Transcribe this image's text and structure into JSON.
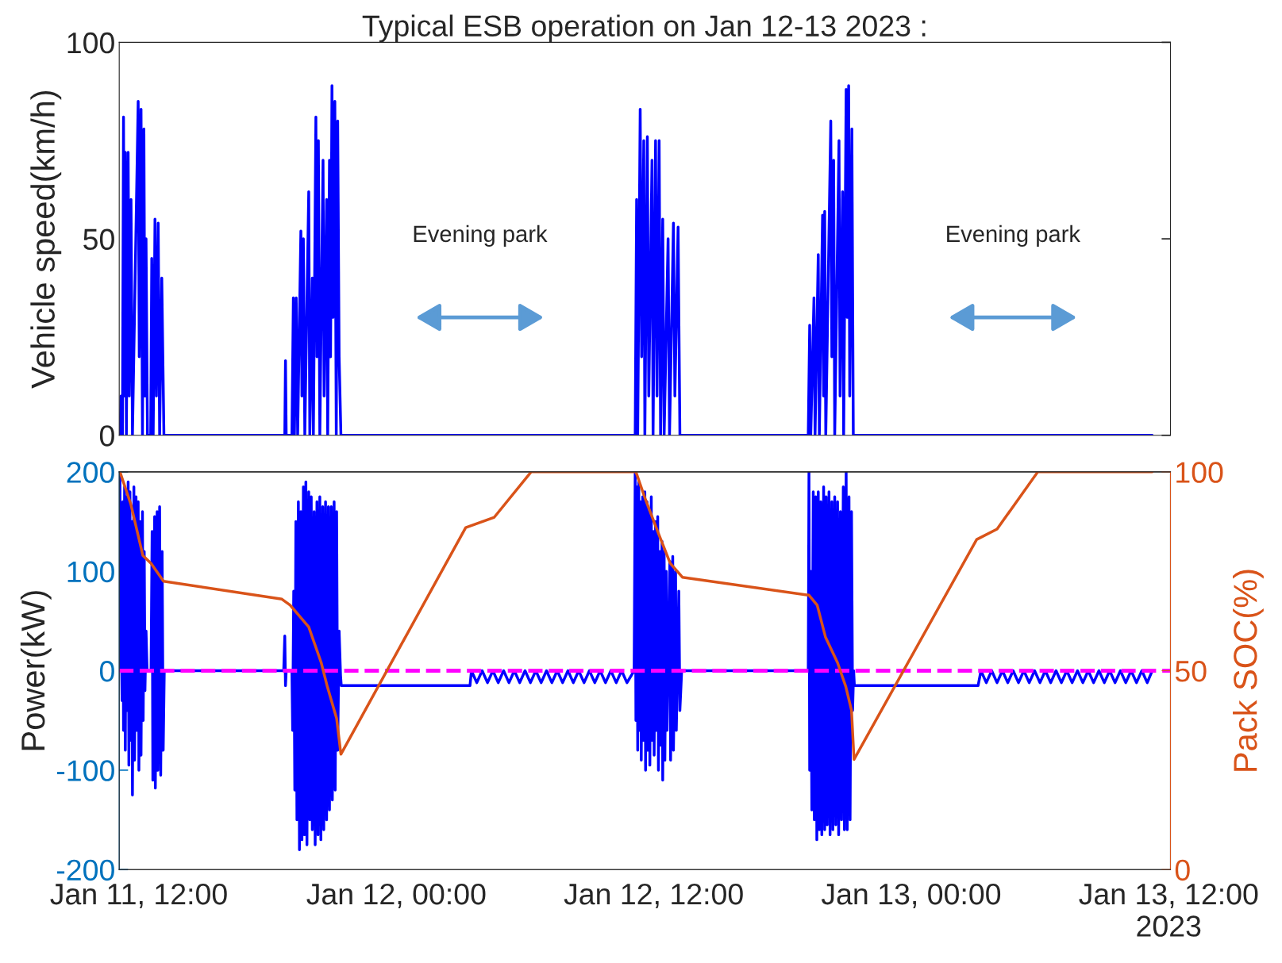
{
  "chart_data": [
    {
      "type": "line",
      "title": "Typical ESB operation on Jan 12-13 2023 :",
      "ylabel": "Vehicle speed(km/h)",
      "xlim": [
        "2023-01-11T11:05",
        "2023-01-13T12:05"
      ],
      "ylim": [
        0,
        100
      ],
      "yticks": [
        0,
        50,
        100
      ],
      "tick_labels": "y",
      "annotations": [
        "Evening park",
        "Evening park"
      ],
      "series": [
        {
          "color": "#0000ff",
          "x": [
            "2023-01-11T11:07",
            "2023-01-11T11:10",
            "2023-01-11T11:14",
            "2023-01-11T11:17",
            "2023-01-11T11:20",
            "2023-01-11T11:22",
            "2023-01-11T11:25",
            "2023-01-11T11:30",
            "2023-01-11T11:33",
            "2023-01-11T11:38",
            "2023-01-11T11:42",
            "2023-01-11T11:58",
            "2023-01-11T12:01",
            "2023-01-11T12:06",
            "2023-01-11T12:10",
            "2023-01-11T12:14",
            "2023-01-11T12:17",
            "2023-01-11T12:20",
            "2023-01-11T12:24",
            "2023-01-11T12:33",
            "2023-01-11T12:36",
            "2023-01-11T12:40",
            "2023-01-11T12:45",
            "2023-01-11T12:49",
            "2023-01-11T12:54",
            "2023-01-11T12:58",
            "2023-01-11T13:04",
            "2023-01-11T13:10",
            "2023-01-11T18:48",
            "2023-01-11T18:50",
            "2023-01-11T18:52",
            "2023-01-11T19:08",
            "2023-01-11T19:12",
            "2023-01-11T19:15",
            "2023-01-11T19:20",
            "2023-01-11T19:24",
            "2023-01-11T19:33",
            "2023-01-11T19:36",
            "2023-01-11T19:40",
            "2023-01-11T19:44",
            "2023-01-11T19:55",
            "2023-01-11T19:58",
            "2023-01-11T20:05",
            "2023-01-11T20:08",
            "2023-01-11T20:15",
            "2023-01-11T20:18",
            "2023-01-11T20:22",
            "2023-01-11T20:26",
            "2023-01-11T20:35",
            "2023-01-11T20:38",
            "2023-01-11T20:45",
            "2023-01-11T20:48",
            "2023-01-11T20:53",
            "2023-01-11T20:56",
            "2023-01-11T21:00",
            "2023-01-11T21:03",
            "2023-01-11T21:08",
            "2023-01-11T21:12",
            "2023-01-11T21:16",
            "2023-01-11T21:20",
            "2023-01-11T21:25",
            "2023-01-12T11:08",
            "2023-01-12T11:12",
            "2023-01-12T11:15",
            "2023-01-12T11:22",
            "2023-01-12T11:26",
            "2023-01-12T11:32",
            "2023-01-12T11:35",
            "2023-01-12T11:42",
            "2023-01-12T11:46",
            "2023-01-12T11:55",
            "2023-01-12T11:58",
            "2023-01-12T12:05",
            "2023-01-12T12:09",
            "2023-01-12T12:15",
            "2023-01-12T12:19",
            "2023-01-12T12:25",
            "2023-01-12T12:29",
            "2023-01-12T12:40",
            "2023-01-12T12:44",
            "2023-01-12T12:55",
            "2023-01-12T12:59",
            "2023-01-12T13:08",
            "2023-01-12T13:13",
            "2023-01-12T19:12",
            "2023-01-12T19:16",
            "2023-01-12T19:19",
            "2023-01-12T19:28",
            "2023-01-12T19:31",
            "2023-01-12T19:40",
            "2023-01-12T19:43",
            "2023-01-12T19:52",
            "2023-01-12T19:55",
            "2023-01-12T19:58",
            "2023-01-12T20:01",
            "2023-01-12T20:15",
            "2023-01-12T20:18",
            "2023-01-12T20:23",
            "2023-01-12T20:26",
            "2023-01-12T20:38",
            "2023-01-12T20:41",
            "2023-01-12T20:48",
            "2023-01-12T20:51",
            "2023-01-12T20:58",
            "2023-01-12T21:01",
            "2023-01-12T21:05",
            "2023-01-12T21:08",
            "2023-01-12T21:14",
            "2023-01-12T21:18",
            "2023-01-13T11:14"
          ],
          "values": [
            0,
            10,
            0,
            81,
            10,
            72,
            0,
            72,
            10,
            60,
            0,
            85,
            20,
            83,
            0,
            78,
            10,
            50,
            0,
            0,
            45,
            0,
            55,
            10,
            54,
            0,
            40,
            0,
            0,
            19,
            0,
            0,
            35,
            0,
            35,
            0,
            52,
            10,
            50,
            0,
            62,
            0,
            40,
            0,
            81,
            20,
            75,
            0,
            70,
            10,
            60,
            0,
            70,
            20,
            89,
            30,
            85,
            0,
            80,
            20,
            0,
            0,
            60,
            0,
            83,
            20,
            75,
            0,
            76,
            10,
            70,
            0,
            75,
            10,
            75,
            0,
            55,
            0,
            50,
            0,
            54,
            10,
            53,
            0,
            0,
            28,
            0,
            35,
            0,
            46,
            0,
            56,
            10,
            57,
            0,
            80,
            20,
            70,
            0,
            75,
            10,
            62,
            0,
            88,
            30,
            89,
            10,
            78,
            0,
            0
          ]
        }
      ]
    },
    {
      "type": "line",
      "ylabel": "Power(kW)",
      "y2label": "Pack SOC(%)",
      "xlim": [
        "2023-01-11T11:05",
        "2023-01-13T12:05"
      ],
      "xticks": [
        {
          "value": "2023-01-11T12:00",
          "label": "Jan 11, 12:00"
        },
        {
          "value": "2023-01-12T00:00",
          "label": "Jan 12, 00:00"
        },
        {
          "value": "2023-01-12T12:00",
          "label": "Jan 12, 12:00"
        },
        {
          "value": "2023-01-13T00:00",
          "label": "Jan 13, 00:00"
        },
        {
          "value": "2023-01-13T12:00",
          "label": "Jan 13, 12:00\n2023"
        }
      ],
      "ylim": [
        -200,
        200
      ],
      "yticks": [
        -200,
        -100,
        0,
        100,
        200
      ],
      "y2lim": [
        0,
        100
      ],
      "y2ticks": [
        0,
        50,
        100
      ],
      "ref_lines": [
        {
          "axis": "y",
          "value": 0,
          "color": "#ff00ff",
          "line_style": "dashed"
        }
      ],
      "series": [
        {
          "color": "#0000ff",
          "x": [
            "2023-01-11T11:07",
            "2023-01-11T11:09",
            "2023-01-11T11:11",
            "2023-01-11T11:13",
            "2023-01-11T11:15",
            "2023-01-11T11:17",
            "2023-01-11T11:20",
            "2023-01-11T11:22",
            "2023-01-11T11:25",
            "2023-01-11T11:27",
            "2023-01-11T11:30",
            "2023-01-11T11:32",
            "2023-01-11T11:35",
            "2023-01-11T11:37",
            "2023-01-11T11:40",
            "2023-01-11T11:42",
            "2023-01-11T11:46",
            "2023-01-11T11:48",
            "2023-01-11T11:52",
            "2023-01-11T11:54",
            "2023-01-11T11:58",
            "2023-01-11T12:00",
            "2023-01-11T12:04",
            "2023-01-11T12:06",
            "2023-01-11T12:10",
            "2023-01-11T12:12",
            "2023-01-11T12:15",
            "2023-01-11T12:17",
            "2023-01-11T12:20",
            "2023-01-11T12:23",
            "2023-01-11T12:34",
            "2023-01-11T12:37",
            "2023-01-11T12:39",
            "2023-01-11T12:44",
            "2023-01-11T12:46",
            "2023-01-11T12:51",
            "2023-01-11T12:53",
            "2023-01-11T12:58",
            "2023-01-11T13:01",
            "2023-01-11T13:05",
            "2023-01-11T13:08",
            "2023-01-11T13:11",
            "2023-01-11T18:45",
            "2023-01-11T18:48",
            "2023-01-11T18:50",
            "2023-01-11T18:52",
            "2023-01-11T19:08",
            "2023-01-11T19:10",
            "2023-01-11T19:13",
            "2023-01-11T19:16",
            "2023-01-11T19:19",
            "2023-01-11T19:22",
            "2023-01-11T19:26",
            "2023-01-11T19:29",
            "2023-01-11T19:33",
            "2023-01-11T19:36",
            "2023-01-11T19:40",
            "2023-01-11T19:43",
            "2023-01-11T19:47",
            "2023-01-11T19:50",
            "2023-01-11T19:55",
            "2023-01-11T19:58",
            "2023-01-11T20:02",
            "2023-01-11T20:05",
            "2023-01-11T20:10",
            "2023-01-11T20:13",
            "2023-01-11T20:18",
            "2023-01-11T20:21",
            "2023-01-11T20:26",
            "2023-01-11T20:29",
            "2023-01-11T20:34",
            "2023-01-11T20:37",
            "2023-01-11T20:42",
            "2023-01-11T20:45",
            "2023-01-11T20:50",
            "2023-01-11T20:53",
            "2023-01-11T20:58",
            "2023-01-11T21:01",
            "2023-01-11T21:06",
            "2023-01-11T21:09",
            "2023-01-11T21:13",
            "2023-01-11T21:16",
            "2023-01-11T21:20",
            "2023-01-11T21:24",
            "2023-01-11T21:26",
            "2023-01-12T03:26",
            "2023-01-12T03:30",
            "2023-01-12T03:45",
            "2023-01-12T04:00",
            "2023-01-12T04:15",
            "2023-01-12T04:30",
            "2023-01-12T04:45",
            "2023-01-12T05:00",
            "2023-01-12T05:15",
            "2023-01-12T05:30",
            "2023-01-12T05:45",
            "2023-01-12T06:00",
            "2023-01-12T06:15",
            "2023-01-12T06:30",
            "2023-01-12T06:45",
            "2023-01-12T07:00",
            "2023-01-12T07:15",
            "2023-01-12T07:30",
            "2023-01-12T07:45",
            "2023-01-12T08:00",
            "2023-01-12T08:15",
            "2023-01-12T08:30",
            "2023-01-12T08:45",
            "2023-01-12T09:00",
            "2023-01-12T09:15",
            "2023-01-12T09:30",
            "2023-01-12T09:45",
            "2023-01-12T10:00",
            "2023-01-12T10:15",
            "2023-01-12T10:30",
            "2023-01-12T10:45",
            "2023-01-12T11:05",
            "2023-01-12T11:08",
            "2023-01-12T11:10",
            "2023-01-12T11:13",
            "2023-01-12T11:15",
            "2023-01-12T11:18",
            "2023-01-12T11:20",
            "2023-01-12T11:23",
            "2023-01-12T11:25",
            "2023-01-12T11:29",
            "2023-01-12T11:31",
            "2023-01-12T11:35",
            "2023-01-12T11:37",
            "2023-01-12T11:41",
            "2023-01-12T11:43",
            "2023-01-12T11:47",
            "2023-01-12T11:49",
            "2023-01-12T11:53",
            "2023-01-12T11:55",
            "2023-01-12T11:59",
            "2023-01-12T12:01",
            "2023-01-12T12:05",
            "2023-01-12T12:07",
            "2023-01-12T12:11",
            "2023-01-12T12:13",
            "2023-01-12T12:17",
            "2023-01-12T12:19",
            "2023-01-12T12:23",
            "2023-01-12T12:25",
            "2023-01-12T12:29",
            "2023-01-12T12:31",
            "2023-01-12T12:35",
            "2023-01-12T12:37",
            "2023-01-12T12:45",
            "2023-01-12T12:47",
            "2023-01-12T12:53",
            "2023-01-12T12:55",
            "2023-01-12T13:01",
            "2023-01-12T13:03",
            "2023-01-12T13:10",
            "2023-01-12T13:13",
            "2023-01-12T13:18",
            "2023-01-12T19:12",
            "2023-01-12T19:14",
            "2023-01-12T19:16",
            "2023-01-12T19:19",
            "2023-01-12T19:22",
            "2023-01-12T19:26",
            "2023-01-12T19:29",
            "2023-01-12T19:33",
            "2023-01-12T19:36",
            "2023-01-12T19:40",
            "2023-01-12T19:43",
            "2023-01-12T19:47",
            "2023-01-12T19:50",
            "2023-01-12T19:55",
            "2023-01-12T19:58",
            "2023-01-12T20:02",
            "2023-01-12T20:05",
            "2023-01-12T20:10",
            "2023-01-12T20:13",
            "2023-01-12T20:18",
            "2023-01-12T20:21",
            "2023-01-12T20:26",
            "2023-01-12T20:29",
            "2023-01-12T20:34",
            "2023-01-12T20:37",
            "2023-01-12T20:42",
            "2023-01-12T20:45",
            "2023-01-12T20:50",
            "2023-01-12T20:53",
            "2023-01-12T20:58",
            "2023-01-12T21:01",
            "2023-01-12T21:06",
            "2023-01-12T21:09",
            "2023-01-12T21:13",
            "2023-01-12T21:16",
            "2023-01-12T21:19",
            "2023-01-12T21:21",
            "2023-01-13T03:07",
            "2023-01-13T03:15",
            "2023-01-13T03:30",
            "2023-01-13T03:45",
            "2023-01-13T04:00",
            "2023-01-13T04:15",
            "2023-01-13T04:30",
            "2023-01-13T04:45",
            "2023-01-13T05:00",
            "2023-01-13T05:15",
            "2023-01-13T05:30",
            "2023-01-13T05:45",
            "2023-01-13T06:00",
            "2023-01-13T06:15",
            "2023-01-13T06:30",
            "2023-01-13T06:45",
            "2023-01-13T07:00",
            "2023-01-13T07:15",
            "2023-01-13T07:30",
            "2023-01-13T07:45",
            "2023-01-13T08:00",
            "2023-01-13T08:15",
            "2023-01-13T08:30",
            "2023-01-13T08:45",
            "2023-01-13T09:00",
            "2023-01-13T09:15",
            "2023-01-13T09:30",
            "2023-01-13T09:45",
            "2023-01-13T10:00",
            "2023-01-13T10:15",
            "2023-01-13T10:30",
            "2023-01-13T10:45",
            "2023-01-13T11:00",
            "2023-01-13T11:14"
          ],
          "values": [
            195,
            0,
            30,
            -30,
            170,
            -60,
            185,
            -80,
            175,
            -40,
            190,
            -95,
            180,
            -70,
            150,
            -125,
            185,
            -90,
            175,
            -60,
            170,
            -100,
            150,
            -85,
            160,
            -50,
            120,
            -20,
            40,
            0,
            0,
            140,
            -110,
            155,
            -118,
            160,
            -100,
            165,
            -105,
            120,
            -80,
            0,
            0,
            35,
            -15,
            0,
            0,
            -60,
            80,
            -120,
            150,
            -150,
            170,
            -180,
            160,
            -170,
            185,
            -165,
            190,
            -175,
            180,
            -150,
            175,
            -160,
            160,
            -175,
            170,
            -165,
            175,
            -170,
            165,
            -160,
            170,
            -150,
            165,
            -140,
            165,
            -130,
            170,
            -120,
            160,
            -80,
            40,
            -5,
            -15,
            -15,
            0,
            -12,
            0,
            -12,
            0,
            -12,
            0,
            -12,
            0,
            -12,
            0,
            -12,
            0,
            -12,
            0,
            -12,
            0,
            -12,
            0,
            -12,
            0,
            -12,
            0,
            -12,
            0,
            -12,
            0,
            -12,
            0,
            -12,
            0,
            200,
            -50,
            185,
            -80,
            190,
            -60,
            170,
            -90,
            175,
            -70,
            180,
            -100,
            170,
            -80,
            160,
            -95,
            175,
            -70,
            140,
            -85,
            150,
            -60,
            155,
            -100,
            120,
            -75,
            130,
            -110,
            120,
            -90,
            100,
            -60,
            110,
            -90,
            115,
            -80,
            100,
            -60,
            80,
            -40,
            0,
            0,
            200,
            -100,
            100,
            -140,
            180,
            -150,
            175,
            -170,
            180,
            -160,
            170,
            -165,
            185,
            -160,
            175,
            -155,
            180,
            -165,
            170,
            -160,
            175,
            -155,
            170,
            -165,
            160,
            -150,
            185,
            -160,
            200,
            -160,
            175,
            -150,
            160,
            -40,
            0,
            -15,
            -15,
            0,
            -12,
            0,
            -12,
            0,
            -12,
            0,
            -12,
            0,
            -12,
            0,
            -12,
            0,
            -12,
            0,
            -12,
            0,
            -12,
            0,
            -12,
            0,
            -12,
            0,
            -12,
            0,
            -12,
            0,
            -12,
            0,
            -12,
            0,
            -12,
            0
          ]
        },
        {
          "color": "#d95319",
          "axis": "y2",
          "x": [
            "2023-01-11T11:07",
            "2023-01-11T11:37",
            "2023-01-11T12:11",
            "2023-01-11T12:34",
            "2023-01-11T13:09",
            "2023-01-11T18:40",
            "2023-01-11T19:03",
            "2023-01-11T19:55",
            "2023-01-11T20:30",
            "2023-01-11T20:47",
            "2023-01-11T21:13",
            "2023-01-11T21:25",
            "2023-01-12T03:14",
            "2023-01-12T04:34",
            "2023-01-12T06:17",
            "2023-01-12T11:10",
            "2023-01-12T11:37",
            "2023-01-12T12:11",
            "2023-01-12T12:46",
            "2023-01-12T13:20",
            "2023-01-12T19:14",
            "2023-01-12T19:37",
            "2023-01-12T20:00",
            "2023-01-12T20:34",
            "2023-01-12T20:57",
            "2023-01-12T21:13",
            "2023-01-12T21:20",
            "2023-01-13T03:03",
            "2023-01-13T04:00",
            "2023-01-13T05:54",
            "2023-01-13T11:14"
          ],
          "values": [
            100,
            92,
            79,
            77,
            72.5,
            68,
            66.5,
            61,
            52,
            46,
            38,
            29,
            86,
            88.6,
            100,
            100,
            93,
            85,
            77,
            73.5,
            69,
            66.5,
            58.5,
            52,
            46,
            40,
            27.7,
            83,
            85.6,
            100,
            100
          ]
        }
      ]
    }
  ]
}
